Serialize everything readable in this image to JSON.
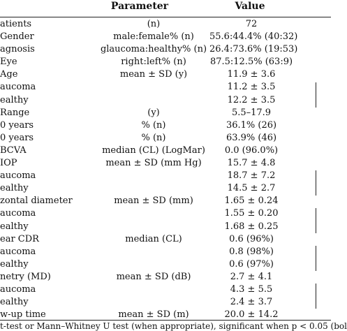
{
  "header": {
    "parameter": "Parameter",
    "value": "Value"
  },
  "rows": [
    {
      "label": "atients",
      "stat": "(n)",
      "value": "72"
    },
    {
      "label": "Gender",
      "stat": "male:female% (n)",
      "value": "55.6:44.4% (40:32)"
    },
    {
      "label": "agnosis",
      "stat": "glaucoma:healthy% (n)",
      "value": "26.4:73.6% (19:53)"
    },
    {
      "label": "Eye",
      "stat": "right:left% (n)",
      "value": "87.5:12.5% (63:9)"
    },
    {
      "label": "Age",
      "stat": "mean ± SD (y)",
      "value": "11.9 ± 3.6"
    },
    {
      "label": "aucoma",
      "stat": "",
      "value": "11.2 ± 3.5"
    },
    {
      "label": "ealthy",
      "stat": "",
      "value": "12.2 ± 3.5"
    },
    {
      "label": "Range",
      "stat": "(y)",
      "value": "5.5–17.9"
    },
    {
      "label": "0 years",
      "stat": "% (n)",
      "value": "36.1% (26)"
    },
    {
      "label": "0 years",
      "stat": "% (n)",
      "value": "63.9% (46)"
    },
    {
      "label": "BCVA",
      "stat": "median (CL) (LogMar)",
      "value": "0.0 (96.0%)"
    },
    {
      "label": "IOP",
      "stat": "mean ± SD (mm Hg)",
      "value": "15.7 ± 4.8"
    },
    {
      "label": "aucoma",
      "stat": "",
      "value": "18.7 ± 7.2"
    },
    {
      "label": "ealthy",
      "stat": "",
      "value": "14.5 ± 2.7"
    },
    {
      "label": "zontal diameter",
      "stat": "mean ± SD (mm)",
      "value": "1.65 ± 0.24"
    },
    {
      "label": "aucoma",
      "stat": "",
      "value": "1.55 ± 0.20"
    },
    {
      "label": "ealthy",
      "stat": "",
      "value": "1.68 ± 0.25"
    },
    {
      "label": "ear CDR",
      "stat": "median (CL)",
      "value": "0.6 (96%)"
    },
    {
      "label": "aucoma",
      "stat": "",
      "value": "0.8 (98%)"
    },
    {
      "label": "ealthy",
      "stat": "",
      "value": "0.6 (97%)"
    },
    {
      "label": "netry (MD)",
      "stat": "mean ± SD (dB)",
      "value": "2.7 ± 4.1"
    },
    {
      "label": "aucoma",
      "stat": "",
      "value": "4.3 ± 5.5"
    },
    {
      "label": "ealthy",
      "stat": "",
      "value": "2.4 ± 3.7"
    },
    {
      "label": "w-up time",
      "stat": "mean ± SD (m)",
      "value": "20.0 ± 14.2"
    }
  ],
  "footnote": "t-test or Mann–Whitney U test (when appropriate), significant when p < 0.05 (bol"
}
